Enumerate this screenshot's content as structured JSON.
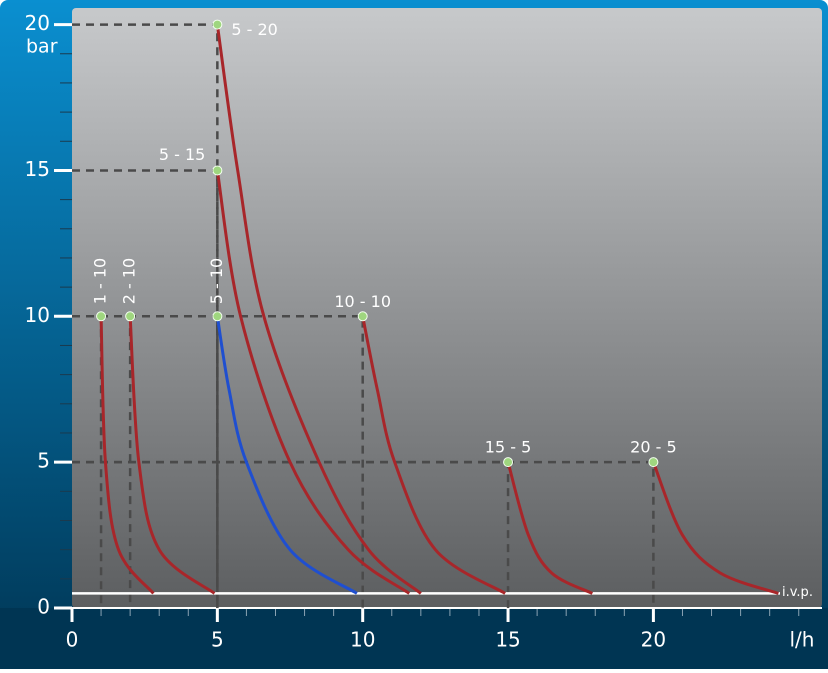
{
  "chart_data": {
    "type": "line",
    "x_label": "l/h",
    "y_label": "bar",
    "xlim": [
      0,
      25.8
    ],
    "ylim": [
      0,
      20.5
    ],
    "xticks": [
      0,
      5,
      10,
      15,
      20
    ],
    "yticks": [
      0,
      5,
      10,
      15,
      20
    ],
    "xminor": [
      1,
      2,
      3,
      4,
      6,
      7,
      8,
      9,
      11,
      12,
      13,
      14,
      16,
      17,
      18,
      19,
      21,
      22,
      23,
      24,
      25
    ],
    "yminor": [
      1,
      2,
      3,
      4,
      6,
      7,
      8,
      9,
      11,
      12,
      13,
      14,
      16,
      17,
      18,
      19
    ],
    "ivp": {
      "value": 0.5,
      "label": "i.v.p."
    },
    "series": [
      {
        "name": "1 - 10",
        "color": "#a8262a",
        "x": [
          1,
          1.15,
          1.6,
          2.8
        ],
        "values": [
          10,
          5,
          2,
          0.5
        ]
      },
      {
        "name": "2 - 10",
        "color": "#a8262a",
        "x": [
          2,
          2.3,
          3,
          4.9
        ],
        "values": [
          10,
          5,
          2,
          0.5
        ]
      },
      {
        "name": "5 - 10",
        "color": "#1f4fd0",
        "x": [
          5,
          5.4,
          6,
          7.5,
          9.8
        ],
        "values": [
          10,
          7.5,
          5,
          2,
          0.5
        ]
      },
      {
        "name": "5 - 15",
        "color": "#a8262a",
        "x": [
          5,
          5.8,
          7.5,
          9.5,
          11.6
        ],
        "values": [
          15,
          10,
          5,
          2,
          0.5
        ]
      },
      {
        "name": "5 - 20",
        "color": "#a8262a",
        "x": [
          5,
          5.7,
          6.6,
          8.5,
          10.2,
          12
        ],
        "values": [
          20,
          15,
          10,
          5,
          2,
          0.5
        ]
      },
      {
        "name": "10 - 10",
        "color": "#a8262a",
        "x": [
          10,
          10.5,
          11.1,
          12.5,
          14.9
        ],
        "values": [
          10,
          7.5,
          5,
          2,
          0.5
        ]
      },
      {
        "name": "15 - 5",
        "color": "#a8262a",
        "x": [
          15,
          15.7,
          16.5,
          17.9
        ],
        "values": [
          5,
          2.5,
          1.2,
          0.5
        ]
      },
      {
        "name": "20 - 5",
        "color": "#a8262a",
        "x": [
          20,
          21,
          22.3,
          24.3
        ],
        "values": [
          5,
          2.5,
          1.2,
          0.5
        ]
      }
    ]
  }
}
